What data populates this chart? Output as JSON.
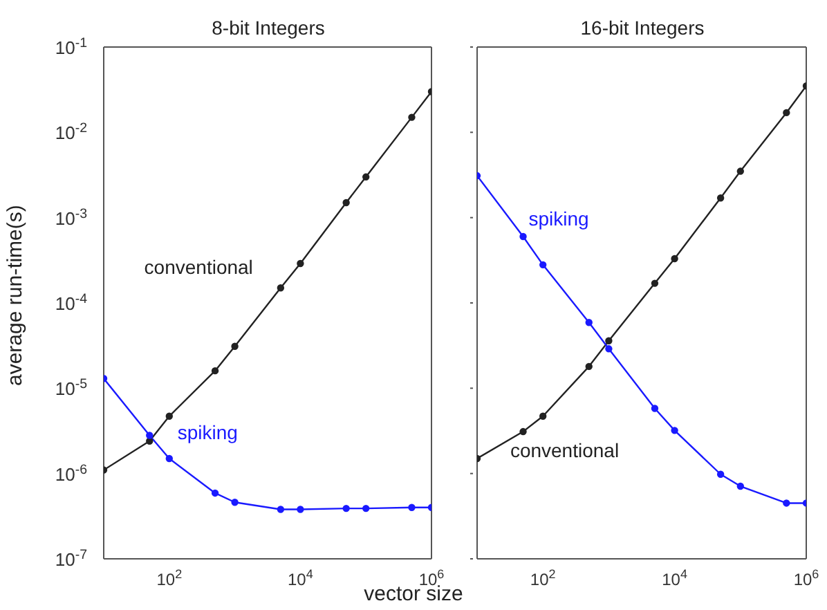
{
  "chart_data": [
    {
      "type": "line",
      "title": "8-bit Integers",
      "xlabel": "vector size",
      "ylabel": "average run-time(s)",
      "log": "xy",
      "marker": "circle",
      "line_style": "solid",
      "grid": false,
      "legend": false,
      "x": [
        10,
        50,
        100,
        500,
        1000,
        5000,
        10000,
        50000,
        100000,
        500000,
        1000000
      ],
      "xlim": [
        10,
        1000000
      ],
      "xticks": [
        {
          "value": 100,
          "label": "10$^{2}$"
        },
        {
          "value": 10000,
          "label": "10$^{4}$"
        },
        {
          "value": 1000000,
          "label": "10$^{6}$"
        }
      ],
      "ylim": [
        1e-07,
        0.1
      ],
      "yticks": [
        {
          "value": 1e-07,
          "label": "10$^{-7}$"
        },
        {
          "value": 1e-06,
          "label": "10$^{-6}$"
        },
        {
          "value": 1e-05,
          "label": "10$^{-5}$"
        },
        {
          "value": 0.0001,
          "label": "10$^{-4}$"
        },
        {
          "value": 0.001,
          "label": "10$^{-3}$"
        },
        {
          "value": 0.01,
          "label": "10$^{-2}$"
        },
        {
          "value": 0.1,
          "label": "10$^{-1}$"
        }
      ],
      "series": [
        {
          "name": "conventional",
          "color": "#222222",
          "values": [
            1.1e-06,
            2.4e-06,
            4.7e-06,
            1.6e-05,
            3.1e-05,
            0.00015,
            0.00029,
            0.0015,
            0.003,
            0.015,
            0.03
          ]
        },
        {
          "name": "spiking",
          "color": "#1a1aff",
          "values": [
            1.3e-05,
            2.8e-06,
            1.5e-06,
            5.9e-07,
            4.6e-07,
            3.8e-07,
            3.8e-07,
            3.9e-07,
            3.9e-07,
            4e-07,
            4e-07
          ]
        }
      ]
    },
    {
      "type": "line",
      "title": "16-bit Integers",
      "log": "xy",
      "marker": "circle",
      "line_style": "solid",
      "grid": false,
      "legend": false,
      "tick_labels": "x",
      "x": [
        10,
        50,
        100,
        500,
        1000,
        5000,
        10000,
        50000,
        100000,
        500000,
        1000000
      ],
      "xlim": [
        10,
        1000000
      ],
      "xticks": [
        {
          "value": 100,
          "label": "10$^{2}$"
        },
        {
          "value": 10000,
          "label": "10$^{4}$"
        },
        {
          "value": 1000000,
          "label": "10$^{6}$"
        }
      ],
      "ylim": [
        1e-07,
        0.1
      ],
      "yticks": [
        {
          "value": 1e-07,
          "label": null
        },
        {
          "value": 1e-06,
          "label": null
        },
        {
          "value": 1e-05,
          "label": null
        },
        {
          "value": 0.0001,
          "label": null
        },
        {
          "value": 0.001,
          "label": null
        },
        {
          "value": 0.01,
          "label": null
        },
        {
          "value": 0.1,
          "label": null
        }
      ],
      "series": [
        {
          "name": "conventional",
          "color": "#222222",
          "values": [
            1.5e-06,
            3.1e-06,
            4.7e-06,
            1.8e-05,
            3.6e-05,
            0.00017,
            0.00033,
            0.0017,
            0.0035,
            0.017,
            0.035
          ]
        },
        {
          "name": "spiking",
          "color": "#1a1aff",
          "values": [
            0.0031,
            0.0006,
            0.00028,
            5.9e-05,
            2.9e-05,
            5.8e-06,
            3.2e-06,
            9.8e-07,
            7.1e-07,
            4.5e-07,
            4.5e-07
          ]
        }
      ]
    }
  ]
}
